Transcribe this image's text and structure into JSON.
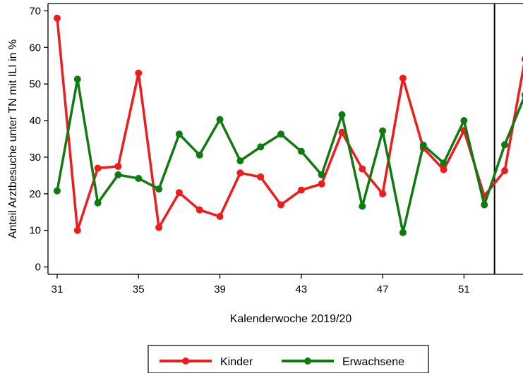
{
  "chart_data": {
    "type": "line",
    "xlabel": "Kalenderwoche 2019/20",
    "ylabel": "Anteil Arztbesuche unter TN mit ILI in %",
    "x_tick_labels": [
      "31",
      "35",
      "39",
      "43",
      "47",
      "51"
    ],
    "x_tick_positions": [
      1,
      5,
      9,
      13,
      17,
      21
    ],
    "y_ticks": [
      0,
      10,
      20,
      30,
      40,
      50,
      60,
      70
    ],
    "xlim": [
      0.55,
      23.9
    ],
    "ylim": [
      -2,
      72
    ],
    "grid": false,
    "legend_position": "bottom",
    "reference_line_x": 22.5,
    "series": [
      {
        "name": "Kinder",
        "color": "#ee1c1c",
        "x": [
          1,
          2,
          3,
          4,
          5,
          6,
          7,
          8,
          9,
          10,
          11,
          12,
          13,
          14,
          15,
          16,
          17,
          18,
          19,
          20,
          21,
          22,
          23,
          24
        ],
        "values": [
          68,
          10,
          27,
          27.5,
          53,
          10.8,
          20.3,
          15.6,
          13.8,
          25.7,
          24.6,
          17,
          21,
          22.7,
          36.8,
          26.8,
          20,
          51.6,
          32.5,
          26.6,
          37.3,
          19.4,
          26.3,
          56.8
        ]
      },
      {
        "name": "Erwachsene",
        "color": "#0f7a0f",
        "x": [
          1,
          2,
          3,
          4,
          5,
          6,
          7,
          8,
          9,
          10,
          11,
          12,
          13,
          14,
          15,
          16,
          17,
          18,
          19,
          20,
          21,
          22,
          23,
          24
        ],
        "values": [
          20.8,
          51.3,
          17.5,
          25.2,
          24.2,
          21.3,
          36.3,
          30.6,
          40.3,
          29,
          32.8,
          36.3,
          31.6,
          25.2,
          41.6,
          16.6,
          37.2,
          9.4,
          33.3,
          28.4,
          40,
          17,
          33.4,
          47
        ]
      }
    ]
  }
}
